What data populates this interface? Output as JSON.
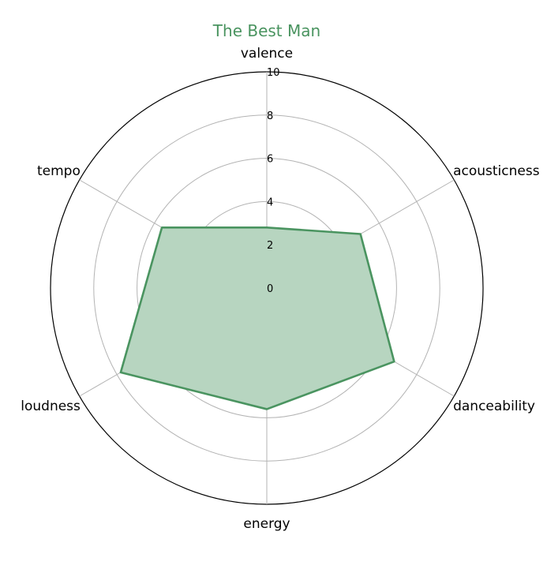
{
  "chart_data": {
    "type": "radar",
    "title": "The Best Man",
    "axes": [
      "valence",
      "acousticness",
      "danceability",
      "energy",
      "loudness",
      "tempo"
    ],
    "series": [
      {
        "values": [
          2.8,
          5.0,
          6.8,
          5.6,
          7.8,
          5.6
        ]
      }
    ],
    "rlim": [
      0,
      10
    ],
    "ticks": [
      0,
      2,
      4,
      6,
      8,
      10
    ],
    "grid": true,
    "colors": {
      "series": "#4a9460",
      "fill": "#b7d5c0",
      "grid": "#b3b3b3",
      "title": "#4a9460"
    }
  }
}
